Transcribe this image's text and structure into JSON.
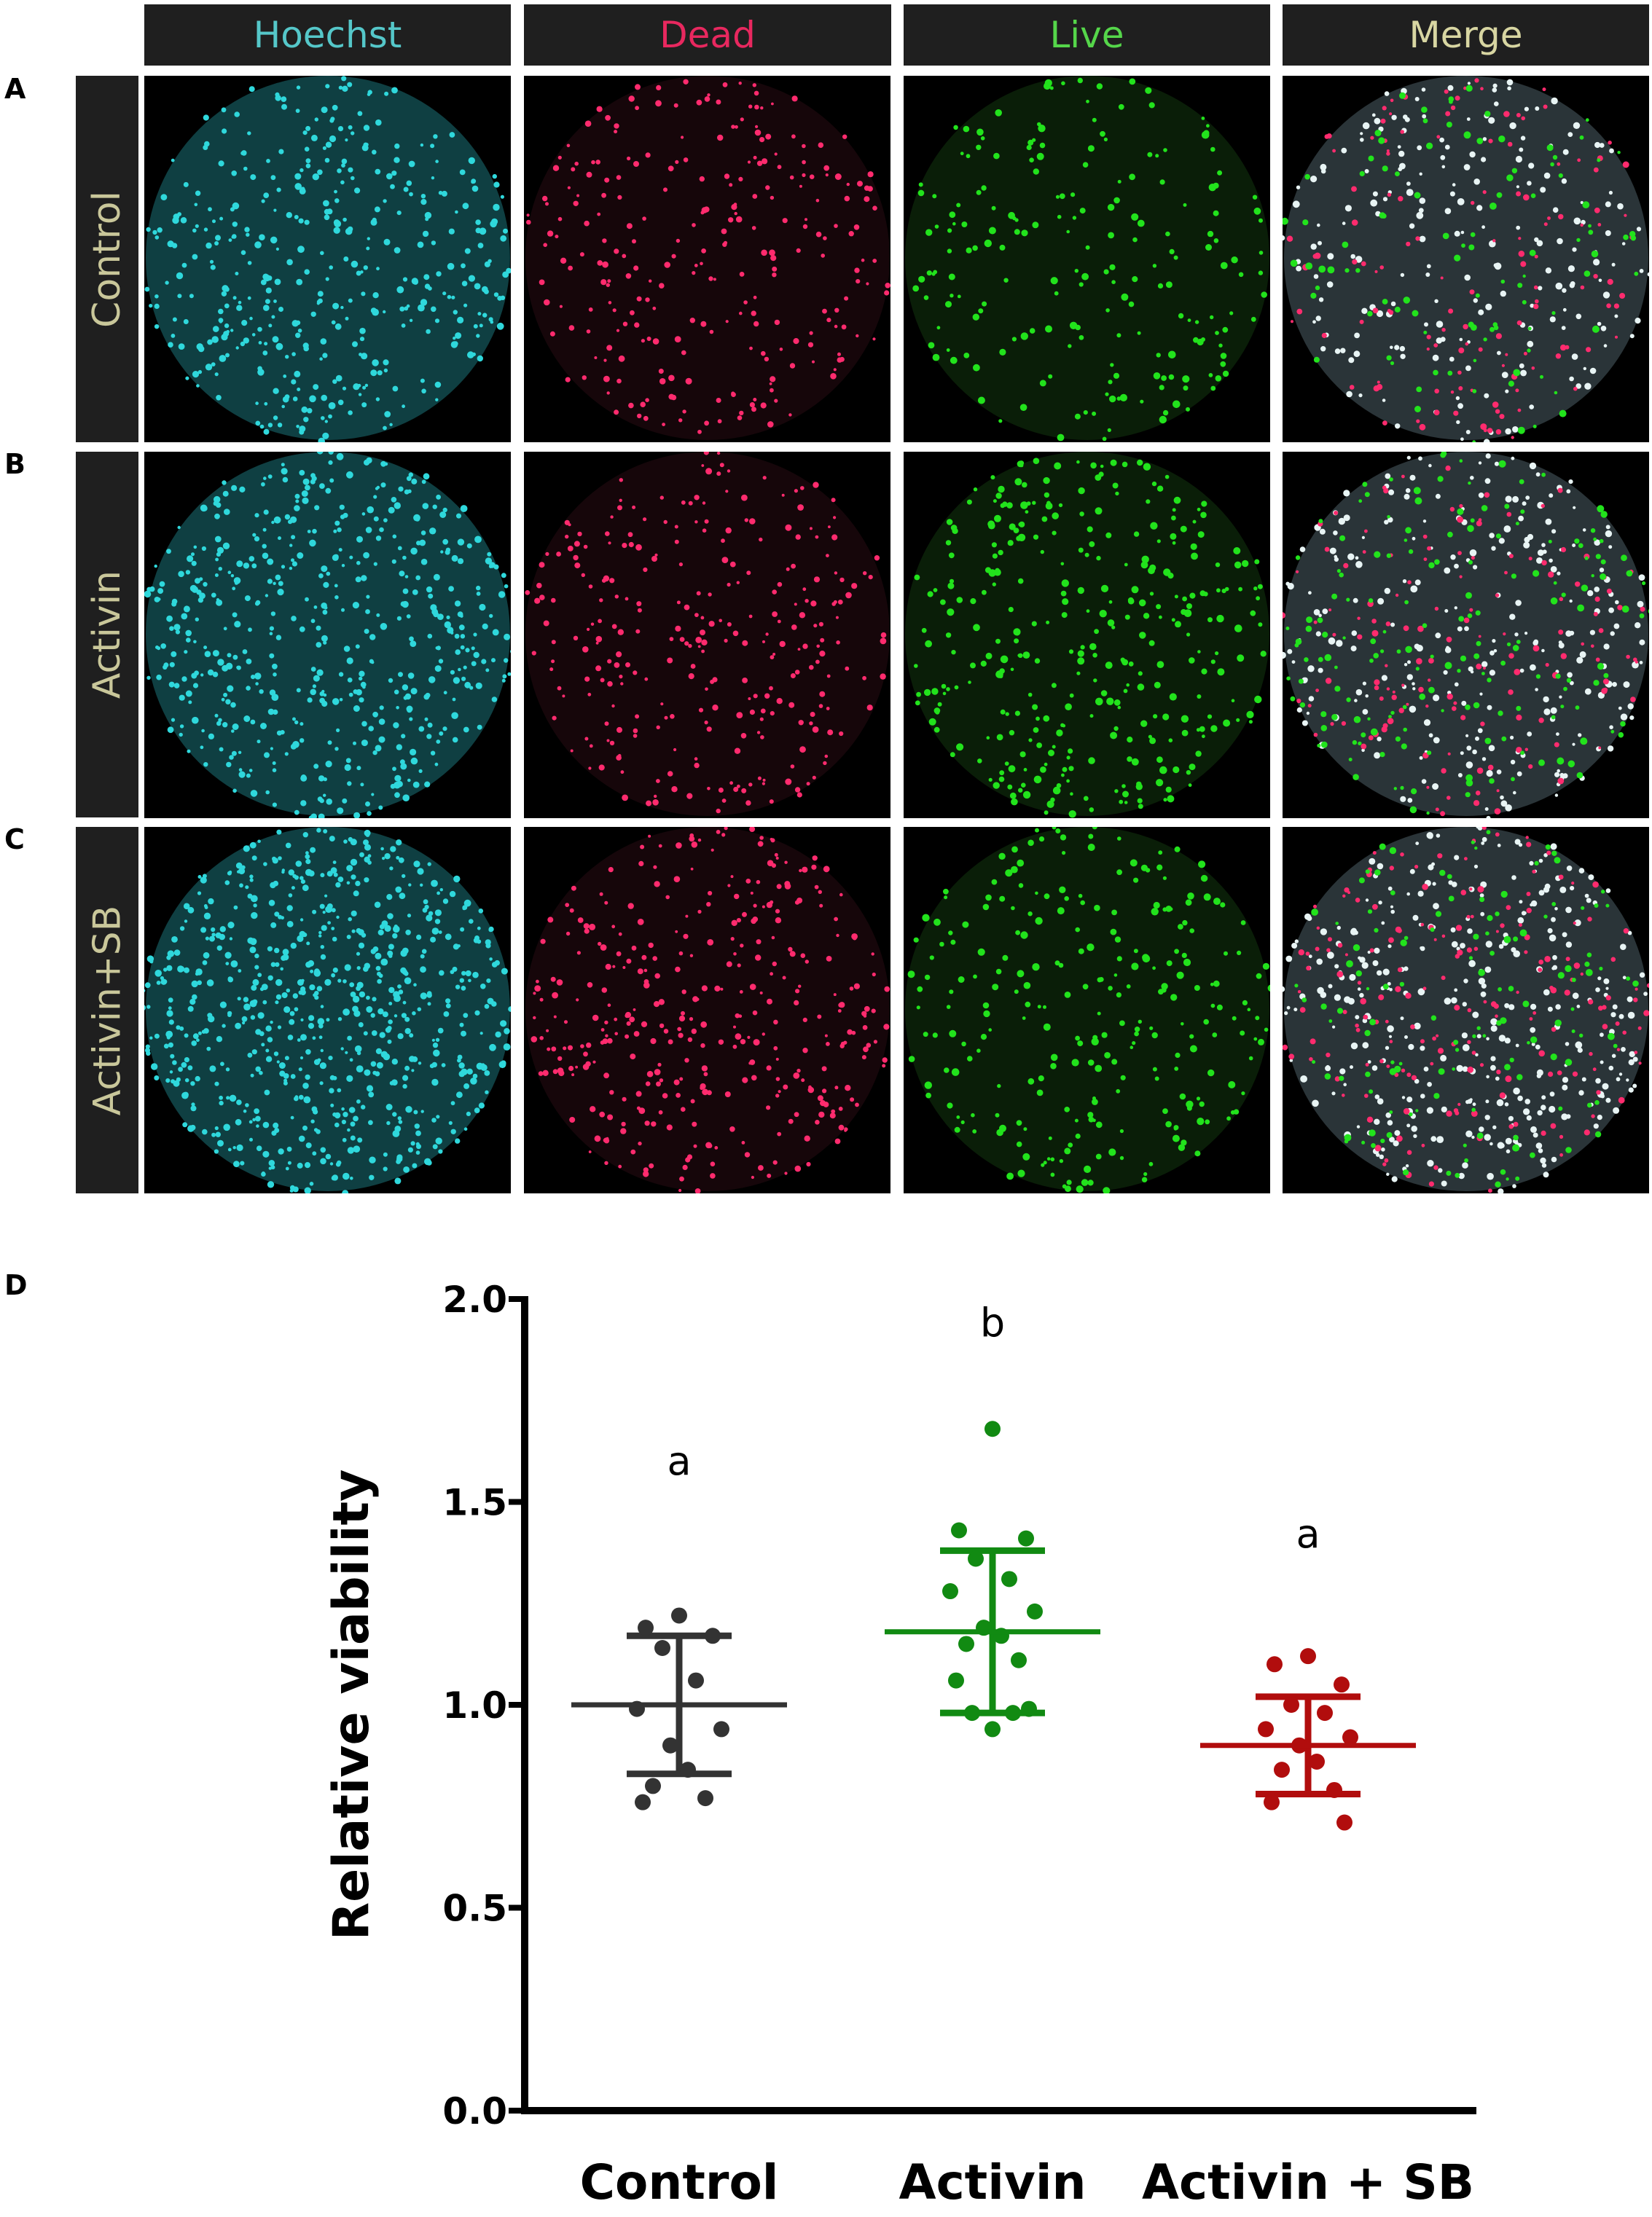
{
  "figure": {
    "columns": [
      {
        "label": "Hoechst",
        "color": "#55c7c9"
      },
      {
        "label": "Dead",
        "color": "#e8285f"
      },
      {
        "label": "Live",
        "color": "#55d64a"
      },
      {
        "label": "Merge",
        "color": "#d8d6a2"
      }
    ],
    "rows": [
      {
        "panel": "A",
        "label": "Control"
      },
      {
        "panel": "B",
        "label": "Activin"
      },
      {
        "panel": "C",
        "label": "Activin+SB"
      }
    ],
    "label_color": "#c9c79a",
    "dot_colors": {
      "hoechst": "#2fd8dc",
      "dead": "#ff2b6e",
      "live": "#22e31c",
      "merge_white": "#e8f4f4"
    },
    "panel_d_label": "D"
  },
  "chart_data": {
    "type": "scatter",
    "ylabel": "Relative viability",
    "xlabel": "",
    "ylim": [
      0,
      2.0
    ],
    "yticks": [
      "0.0",
      "0.5",
      "1.0",
      "1.5",
      "2.0"
    ],
    "categories": [
      "Control",
      "Activin",
      "Activin + SB"
    ],
    "series": [
      {
        "color": "#333333",
        "mean": 1.0,
        "sd_low": 0.83,
        "sd_high": 1.17,
        "letter": "a",
        "letter_y": 1.6,
        "points": [
          1.22,
          1.19,
          1.17,
          1.14,
          1.06,
          0.99,
          0.94,
          0.9,
          0.84,
          0.8,
          0.77,
          0.76
        ]
      },
      {
        "color": "#118a12",
        "mean": 1.18,
        "sd_low": 0.98,
        "sd_high": 1.38,
        "letter": "b",
        "letter_y": 1.94,
        "points": [
          1.68,
          1.43,
          1.41,
          1.36,
          1.31,
          1.28,
          1.23,
          1.19,
          1.17,
          1.15,
          1.11,
          1.06,
          0.99,
          0.98,
          0.98,
          0.94
        ]
      },
      {
        "color": "#b10d0d",
        "mean": 0.9,
        "sd_low": 0.78,
        "sd_high": 1.02,
        "letter": "a",
        "letter_y": 1.42,
        "points": [
          1.12,
          1.1,
          1.05,
          1.0,
          0.98,
          0.94,
          0.92,
          0.9,
          0.86,
          0.84,
          0.79,
          0.76,
          0.71
        ]
      }
    ]
  }
}
